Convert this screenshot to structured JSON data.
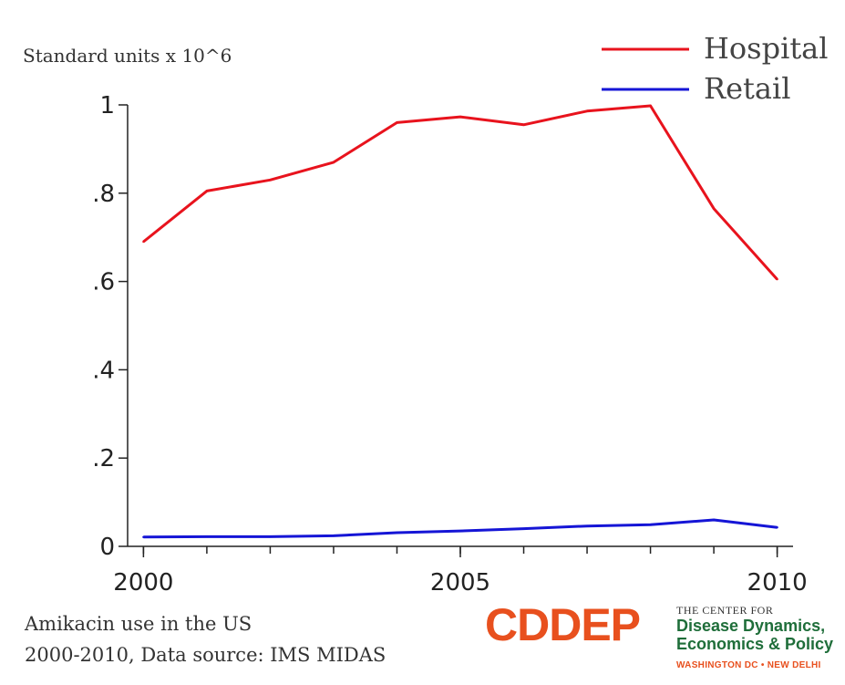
{
  "chart_data": {
    "type": "line",
    "ylabel": "Standard units x 10^6",
    "x": [
      2000,
      2001,
      2002,
      2003,
      2004,
      2005,
      2006,
      2007,
      2008,
      2009,
      2010
    ],
    "xticks": [
      {
        "value": 2000,
        "label": "2000"
      },
      {
        "value": 2005,
        "label": "2005"
      },
      {
        "value": 2010,
        "label": "2010"
      }
    ],
    "yticks": [
      {
        "value": 0,
        "label": "0"
      },
      {
        "value": 0.2,
        "label": ".2"
      },
      {
        "value": 0.4,
        "label": ".4"
      },
      {
        "value": 0.6,
        "label": ".6"
      },
      {
        "value": 0.8,
        "label": ".8"
      },
      {
        "value": 1.0,
        "label": "1"
      }
    ],
    "xlim": [
      1999.75,
      2010.25
    ],
    "ylim": [
      0,
      1.0
    ],
    "grid": false,
    "legend_position": "top-right",
    "series": [
      {
        "name": "Hospital",
        "color": "#e8131d",
        "values": [
          0.69,
          0.805,
          0.83,
          0.87,
          0.96,
          0.973,
          0.955,
          0.986,
          0.998,
          0.765,
          0.605
        ]
      },
      {
        "name": "Retail",
        "color": "#1515d6",
        "values": [
          0.021,
          0.022,
          0.022,
          0.024,
          0.031,
          0.035,
          0.04,
          0.046,
          0.049,
          0.06,
          0.043
        ]
      }
    ]
  },
  "caption": {
    "line1": "Amikacin use in the US",
    "line2": "2000-2010, Data source: IMS MIDAS"
  },
  "logo": {
    "mark": "CDDEP",
    "small": "THE CENTER FOR",
    "line1": "Disease Dynamics,",
    "line2": "Economics & Policy",
    "location": "WASHINGTON DC • NEW DELHI",
    "colors": {
      "mark": "#e8501e",
      "text": "#1f6e3a",
      "location": "#e8501e"
    }
  }
}
